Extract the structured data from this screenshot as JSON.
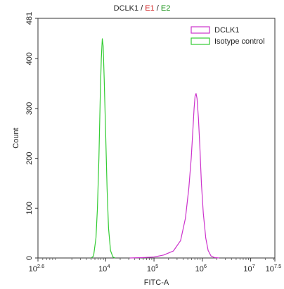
{
  "chart_data": {
    "type": "line",
    "title": "DCLK1 / E1 / E2",
    "title_parts": [
      {
        "text": "DCLK1 / ",
        "color": "#222222"
      },
      {
        "text": "E1",
        "color": "#d02020"
      },
      {
        "text": " / ",
        "color": "#222222"
      },
      {
        "text": "E2",
        "color": "#109010"
      }
    ],
    "xlabel": "FITC-A",
    "ylabel": "Count",
    "x_scale": "log",
    "xlim_log10": [
      2.6,
      7.5
    ],
    "ylim": [
      0,
      481
    ],
    "x_ticks": [
      {
        "base": "10",
        "exp": "2.6",
        "value_log10": 2.6
      },
      {
        "base": "10",
        "exp": "4",
        "value_log10": 4
      },
      {
        "base": "10",
        "exp": "5",
        "value_log10": 5
      },
      {
        "base": "10",
        "exp": "6",
        "value_log10": 6
      },
      {
        "base": "10",
        "exp": "7",
        "value_log10": 7
      },
      {
        "base": "10",
        "exp": "7.5",
        "value_log10": 7.5
      }
    ],
    "y_ticks": [
      0,
      100,
      200,
      300,
      400,
      481
    ],
    "legend_placement": "top-right",
    "series": [
      {
        "name": "DCLK1",
        "color": "#cc33cc",
        "points_log10x": [
          [
            4.5,
            0
          ],
          [
            4.8,
            1
          ],
          [
            5.0,
            2
          ],
          [
            5.2,
            6
          ],
          [
            5.4,
            14
          ],
          [
            5.55,
            35
          ],
          [
            5.65,
            80
          ],
          [
            5.72,
            140
          ],
          [
            5.77,
            200
          ],
          [
            5.8,
            250
          ],
          [
            5.83,
            300
          ],
          [
            5.85,
            325
          ],
          [
            5.87,
            330
          ],
          [
            5.89,
            320
          ],
          [
            5.92,
            280
          ],
          [
            5.95,
            220
          ],
          [
            5.98,
            150
          ],
          [
            6.02,
            90
          ],
          [
            6.07,
            40
          ],
          [
            6.12,
            15
          ],
          [
            6.18,
            4
          ],
          [
            6.25,
            1
          ],
          [
            6.35,
            0
          ]
        ]
      },
      {
        "name": "Isotype control",
        "color": "#33cc33",
        "points_log10x": [
          [
            3.7,
            0
          ],
          [
            3.75,
            4
          ],
          [
            3.8,
            40
          ],
          [
            3.83,
            100
          ],
          [
            3.86,
            200
          ],
          [
            3.89,
            330
          ],
          [
            3.91,
            400
          ],
          [
            3.93,
            440
          ],
          [
            3.95,
            425
          ],
          [
            3.97,
            360
          ],
          [
            4.0,
            250
          ],
          [
            4.03,
            140
          ],
          [
            4.06,
            60
          ],
          [
            4.1,
            15
          ],
          [
            4.15,
            2
          ],
          [
            4.2,
            0
          ]
        ]
      }
    ]
  }
}
